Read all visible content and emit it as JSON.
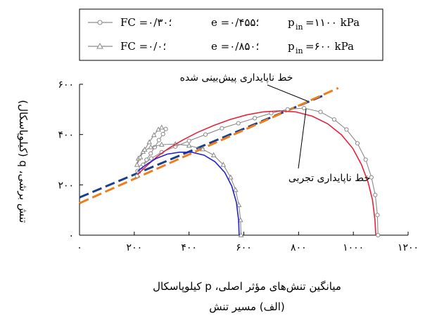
{
  "chart_data": {
    "type": "line",
    "xlabel": "میانگین تنش‌های مؤثر اصلی، p کیلوپاسکال",
    "ylabel": "تنش برشی، q (کیلوپاسکال)",
    "caption": "(الف) مسیر تنش",
    "xlim": [
      0,
      1200
    ],
    "ylim": [
      0,
      600
    ],
    "x_ticks": [
      {
        "value": 0,
        "label": "۰"
      },
      {
        "value": 200,
        "label": "۲۰۰"
      },
      {
        "value": 400,
        "label": "۴۰۰"
      },
      {
        "value": 600,
        "label": "۶۰۰"
      },
      {
        "value": 800,
        "label": "۸۰۰"
      },
      {
        "value": 1000,
        "label": "۱۰۰۰"
      },
      {
        "value": 1200,
        "label": "۱۲۰۰"
      }
    ],
    "y_ticks": [
      {
        "value": 0,
        "label": "۰"
      },
      {
        "value": 200,
        "label": "۲۰۰"
      },
      {
        "value": 400,
        "label": "۴۰۰"
      },
      {
        "value": 600,
        "label": "۶۰۰"
      }
    ],
    "legend": [
      {
        "fc": "FC =۰/۳۰؛",
        "e": "e =۰/۴۵۵؛",
        "p": "=۱۱۰۰ kPa",
        "marker": "circle"
      },
      {
        "fc": "FC =۰/۰؛",
        "e": "e =۰/۸۵۰؛",
        "p": "=۶۰۰ kPa",
        "marker": "triangle"
      }
    ],
    "legend_p_symbol": "p",
    "legend_p_sub": "in",
    "series": [
      {
        "marker": "circle",
        "color": "#8a8a8a",
        "points": [
          [
            1090,
            0
          ],
          [
            1088,
            80
          ],
          [
            1080,
            160
          ],
          [
            1066,
            230
          ],
          [
            1045,
            300
          ],
          [
            1015,
            365
          ],
          [
            975,
            420
          ],
          [
            930,
            460
          ],
          [
            880,
            490
          ],
          [
            820,
            505
          ],
          [
            760,
            500
          ],
          [
            700,
            485
          ],
          [
            640,
            465
          ],
          [
            580,
            445
          ],
          [
            520,
            425
          ],
          [
            460,
            400
          ],
          [
            400,
            375
          ],
          [
            350,
            352
          ],
          [
            300,
            330
          ],
          [
            262,
            305
          ],
          [
            232,
            280
          ],
          [
            212,
            255
          ],
          [
            210,
            235
          ],
          [
            225,
            270
          ],
          [
            245,
            300
          ],
          [
            260,
            325
          ],
          [
            275,
            350
          ],
          [
            290,
            378
          ],
          [
            305,
            402
          ],
          [
            315,
            422
          ]
        ]
      },
      {
        "marker": "triangle",
        "color": "#8a8a8a",
        "points": [
          [
            590,
            0
          ],
          [
            588,
            60
          ],
          [
            582,
            120
          ],
          [
            570,
            180
          ],
          [
            552,
            230
          ],
          [
            525,
            280
          ],
          [
            490,
            318
          ],
          [
            450,
            342
          ],
          [
            400,
            356
          ],
          [
            350,
            362
          ],
          [
            300,
            360
          ],
          [
            260,
            350
          ],
          [
            232,
            332
          ],
          [
            215,
            305
          ],
          [
            210,
            280
          ],
          [
            222,
            310
          ],
          [
            238,
            340
          ],
          [
            255,
            370
          ],
          [
            272,
            398
          ],
          [
            288,
            420
          ],
          [
            300,
            428
          ]
        ]
      },
      {
        "color": "#e8223a",
        "points": [
          [
            1082,
            0
          ],
          [
            1079,
            60
          ],
          [
            1070,
            140
          ],
          [
            1054,
            210
          ],
          [
            1030,
            280
          ],
          [
            998,
            345
          ],
          [
            956,
            400
          ],
          [
            906,
            443
          ],
          [
            850,
            473
          ],
          [
            790,
            490
          ],
          [
            730,
            494
          ],
          [
            670,
            490
          ],
          [
            610,
            478
          ],
          [
            550,
            460
          ],
          [
            490,
            436
          ],
          [
            430,
            408
          ],
          [
            375,
            377
          ],
          [
            325,
            345
          ],
          [
            283,
            312
          ],
          [
            250,
            280
          ],
          [
            228,
            258
          ],
          [
            212,
            240
          ]
        ]
      },
      {
        "color": "#2323d4",
        "points": [
          [
            583,
            0
          ],
          [
            581,
            60
          ],
          [
            573,
            130
          ],
          [
            556,
            195
          ],
          [
            530,
            250
          ],
          [
            495,
            292
          ],
          [
            455,
            318
          ],
          [
            410,
            330
          ],
          [
            365,
            330
          ],
          [
            320,
            322
          ],
          [
            280,
            305
          ],
          [
            250,
            285
          ],
          [
            228,
            268
          ],
          [
            212,
            253
          ]
        ]
      }
    ],
    "lines": [
      {
        "name": "خط ناپایداری تجربی",
        "color": "#1c3f8a",
        "from": [
          0,
          150
        ],
        "to": [
          890,
          555
        ]
      },
      {
        "name": "خط ناپایداری پیش‌بینی شده",
        "color": "#f07d1a",
        "from": [
          0,
          127
        ],
        "to": [
          945,
          585
        ]
      }
    ],
    "annotations": [
      {
        "text": "خط ناپایداری پیش‌بینی شده",
        "x": 700,
        "y": 650
      },
      {
        "text": "خط ناپایداری تجربی",
        "x": 1000,
        "y": 250
      }
    ],
    "grid": false
  }
}
